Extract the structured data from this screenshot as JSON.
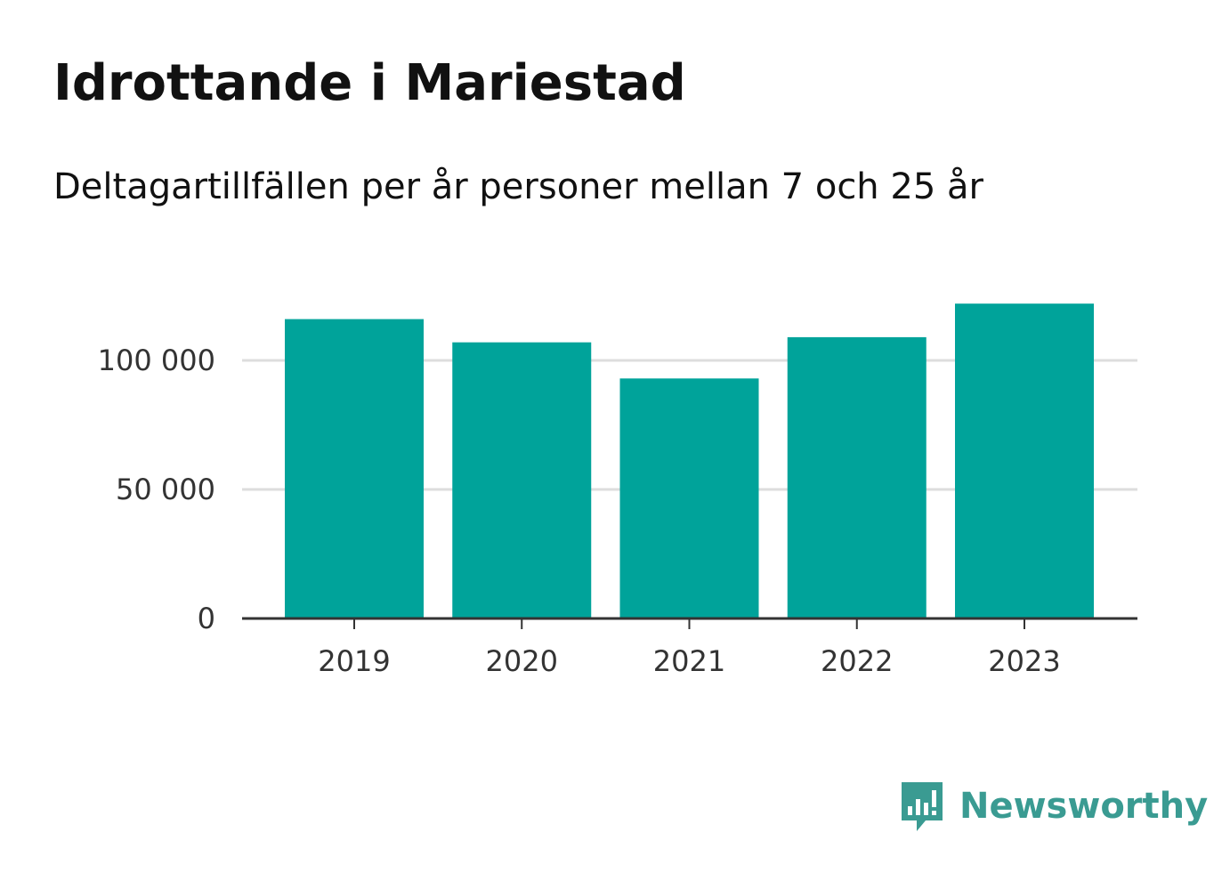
{
  "header": {
    "title": "Idrottande i Mariestad",
    "subtitle": "Deltagartillfällen per år personer mellan 7 och 25 år"
  },
  "chart_data": {
    "type": "bar",
    "categories": [
      "2019",
      "2020",
      "2021",
      "2022",
      "2023"
    ],
    "values": [
      116000,
      107000,
      93000,
      109000,
      122000
    ],
    "title": "",
    "xlabel": "",
    "ylabel": "",
    "ylim": [
      0,
      125000
    ],
    "yticks": [
      0,
      50000,
      100000
    ],
    "ytick_labels": [
      "0",
      "50 000",
      "100 000"
    ],
    "grid": true,
    "legend": "none",
    "bar_color": "#00a39a",
    "grid_color": "#dddddd",
    "axis_color": "#333333"
  },
  "brand": {
    "name": "Newsworthy",
    "icon": "newsworthy-logo-icon",
    "color": "#3a9b92"
  }
}
